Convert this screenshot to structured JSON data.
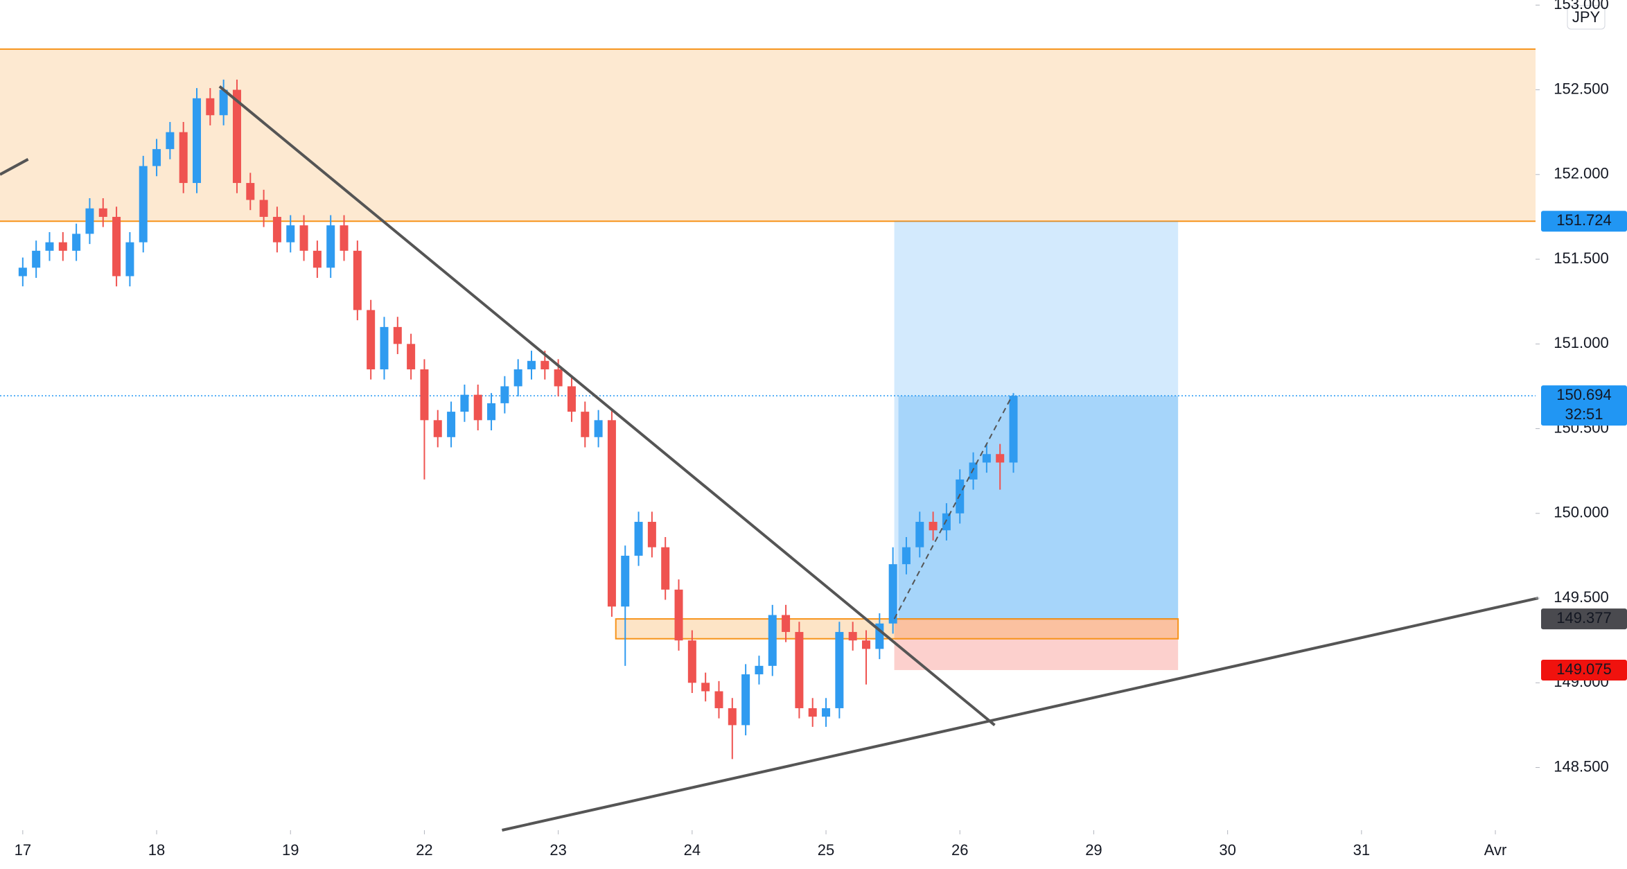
{
  "chart_data": {
    "type": "candlestick",
    "currency": "JPY",
    "xlim": [
      -0.17,
      11.3
    ],
    "ylim": [
      148.13,
      153.03
    ],
    "grid": false,
    "xticks": [
      {
        "value": 0,
        "label": "17"
      },
      {
        "value": 1,
        "label": "18"
      },
      {
        "value": 2,
        "label": "19"
      },
      {
        "value": 3,
        "label": "22"
      },
      {
        "value": 4,
        "label": "23"
      },
      {
        "value": 5,
        "label": "24"
      },
      {
        "value": 6,
        "label": "25"
      },
      {
        "value": 7,
        "label": "26"
      },
      {
        "value": 8,
        "label": "29"
      },
      {
        "value": 9,
        "label": "30"
      },
      {
        "value": 10,
        "label": "31"
      },
      {
        "value": 11,
        "label": "Avr"
      }
    ],
    "yticks": [
      {
        "value": 148.5,
        "label": "148.500"
      },
      {
        "value": 149,
        "label": "149.000"
      },
      {
        "value": 149.5,
        "label": "149.500"
      },
      {
        "value": 150,
        "label": "150.000"
      },
      {
        "value": 150.5,
        "label": "150.500"
      },
      {
        "value": 151,
        "label": "151.000"
      },
      {
        "value": 151.5,
        "label": "151.500"
      },
      {
        "value": 152,
        "label": "152.000"
      },
      {
        "value": 152.5,
        "label": "152.500"
      },
      {
        "value": 153,
        "label": "153.000"
      }
    ],
    "up_color": "#2f9bf0",
    "down_color": "#ef5350",
    "candles": {
      "x": [
        0,
        0.1,
        0.2,
        0.3,
        0.4,
        0.5,
        0.6,
        0.7,
        0.8,
        0.9,
        1,
        1.1,
        1.2,
        1.3,
        1.4,
        1.5,
        1.6,
        1.7,
        1.8,
        1.9,
        2,
        2.1,
        2.2,
        2.3,
        2.4,
        2.5,
        2.6,
        2.7,
        2.8,
        2.9,
        3,
        3.1,
        3.2,
        3.3,
        3.4,
        3.5,
        3.6,
        3.7,
        3.8,
        3.9,
        4,
        4.1,
        4.2,
        4.3,
        4.4,
        4.5,
        4.6,
        4.7,
        4.8,
        4.9,
        5,
        5.1,
        5.2,
        5.3,
        5.4,
        5.5,
        5.6,
        5.7,
        5.8,
        5.9,
        6,
        6.1,
        6.2,
        6.3,
        6.4,
        6.5,
        6.6,
        6.7,
        6.8,
        6.9,
        7,
        7.1,
        7.2,
        7.3,
        7.4
      ],
      "open": [
        151.4,
        151.45,
        151.55,
        151.6,
        151.55,
        151.65,
        151.8,
        151.75,
        151.4,
        151.6,
        152.05,
        152.15,
        152.25,
        151.95,
        152.45,
        152.35,
        152.5,
        151.95,
        151.85,
        151.75,
        151.6,
        151.7,
        151.55,
        151.45,
        151.7,
        151.55,
        151.2,
        150.85,
        151.1,
        151.0,
        150.85,
        150.55,
        150.45,
        150.6,
        150.7,
        150.55,
        150.65,
        150.75,
        150.85,
        150.9,
        150.85,
        150.75,
        150.6,
        150.45,
        150.55,
        149.45,
        149.75,
        149.95,
        149.8,
        149.55,
        149.25,
        149.0,
        148.95,
        148.85,
        148.75,
        149.05,
        149.1,
        149.4,
        149.3,
        148.85,
        148.8,
        148.85,
        149.3,
        149.25,
        149.2,
        149.35,
        149.7,
        149.8,
        149.95,
        149.9,
        150.0,
        150.2,
        150.3,
        150.35,
        150.3
      ],
      "high": [
        151.51,
        151.61,
        151.66,
        151.66,
        151.71,
        151.86,
        151.86,
        151.81,
        151.66,
        152.11,
        152.21,
        152.31,
        152.31,
        152.51,
        152.51,
        152.56,
        152.56,
        152.01,
        151.91,
        151.81,
        151.76,
        151.76,
        151.61,
        151.76,
        151.76,
        151.61,
        151.26,
        151.16,
        151.16,
        151.06,
        150.91,
        150.61,
        150.66,
        150.76,
        150.76,
        150.71,
        150.81,
        150.91,
        150.96,
        150.96,
        150.91,
        150.81,
        150.66,
        150.61,
        150.61,
        149.81,
        150.01,
        150.01,
        149.86,
        149.61,
        149.31,
        149.06,
        149.01,
        148.91,
        149.11,
        149.16,
        149.46,
        149.46,
        149.36,
        148.91,
        148.91,
        149.36,
        149.36,
        149.31,
        149.41,
        149.8,
        149.86,
        150.01,
        150.01,
        150.06,
        150.26,
        150.36,
        150.41,
        150.41,
        150.71
      ],
      "low": [
        151.34,
        151.39,
        151.49,
        151.49,
        151.49,
        151.59,
        151.69,
        151.34,
        151.34,
        151.54,
        151.99,
        152.09,
        151.89,
        151.89,
        152.29,
        152.29,
        151.89,
        151.79,
        151.69,
        151.54,
        151.54,
        151.49,
        151.39,
        151.39,
        151.49,
        151.14,
        150.79,
        150.79,
        150.94,
        150.79,
        150.2,
        150.39,
        150.39,
        150.54,
        150.49,
        150.49,
        150.59,
        150.69,
        150.79,
        150.79,
        150.69,
        150.54,
        150.39,
        150.39,
        149.39,
        149.1,
        149.69,
        149.74,
        149.49,
        149.19,
        148.94,
        148.89,
        148.79,
        148.55,
        148.69,
        148.99,
        149.04,
        149.24,
        148.79,
        148.74,
        148.74,
        148.79,
        149.19,
        148.99,
        149.14,
        149.29,
        149.64,
        149.74,
        149.84,
        149.84,
        149.94,
        150.14,
        150.24,
        150.14,
        150.24
      ],
      "close": [
        151.45,
        151.55,
        151.6,
        151.55,
        151.65,
        151.8,
        151.75,
        151.4,
        151.6,
        152.05,
        152.15,
        152.25,
        151.95,
        152.45,
        152.35,
        152.5,
        151.95,
        151.85,
        151.75,
        151.6,
        151.7,
        151.55,
        151.45,
        151.7,
        151.55,
        151.2,
        150.85,
        151.1,
        151.0,
        150.85,
        150.55,
        150.45,
        150.6,
        150.7,
        150.55,
        150.65,
        150.75,
        150.85,
        150.9,
        150.85,
        150.75,
        150.6,
        150.45,
        150.55,
        149.45,
        149.75,
        149.95,
        149.8,
        149.55,
        149.25,
        149.0,
        148.95,
        148.85,
        148.75,
        149.05,
        149.1,
        149.4,
        149.3,
        148.85,
        148.8,
        148.85,
        149.3,
        149.25,
        149.2,
        149.35,
        149.7,
        149.8,
        149.95,
        149.9,
        150.0,
        150.2,
        150.3,
        150.35,
        150.3,
        150.694
      ]
    },
    "resistance_zone": {
      "y": [
        151.724,
        152.74
      ],
      "color": "#f7931a"
    },
    "support_zone": {
      "x": [
        4.43,
        8.63
      ],
      "y": [
        149.26,
        149.377
      ],
      "color": "#f7931a"
    },
    "position": {
      "x": [
        6.51,
        8.63
      ],
      "entry": 149.377,
      "target": 151.724,
      "stop": 149.075
    },
    "last": 150.694,
    "countdown": "32:51",
    "lines": [
      {
        "x": [
          -0.17,
          0.04
        ],
        "y": [
          152.0,
          152.09
        ],
        "color": "#555555"
      },
      {
        "x": [
          1.47,
          7.26
        ],
        "y": [
          152.52,
          148.75
        ],
        "color": "#555555"
      },
      {
        "x": [
          3.58,
          11.32
        ],
        "y": [
          148.13,
          149.5
        ],
        "color": "#555555"
      },
      {
        "x": [
          6.51,
          7.39
        ],
        "y": [
          149.377,
          150.694
        ],
        "color": "#555555",
        "dashed": true
      }
    ]
  }
}
